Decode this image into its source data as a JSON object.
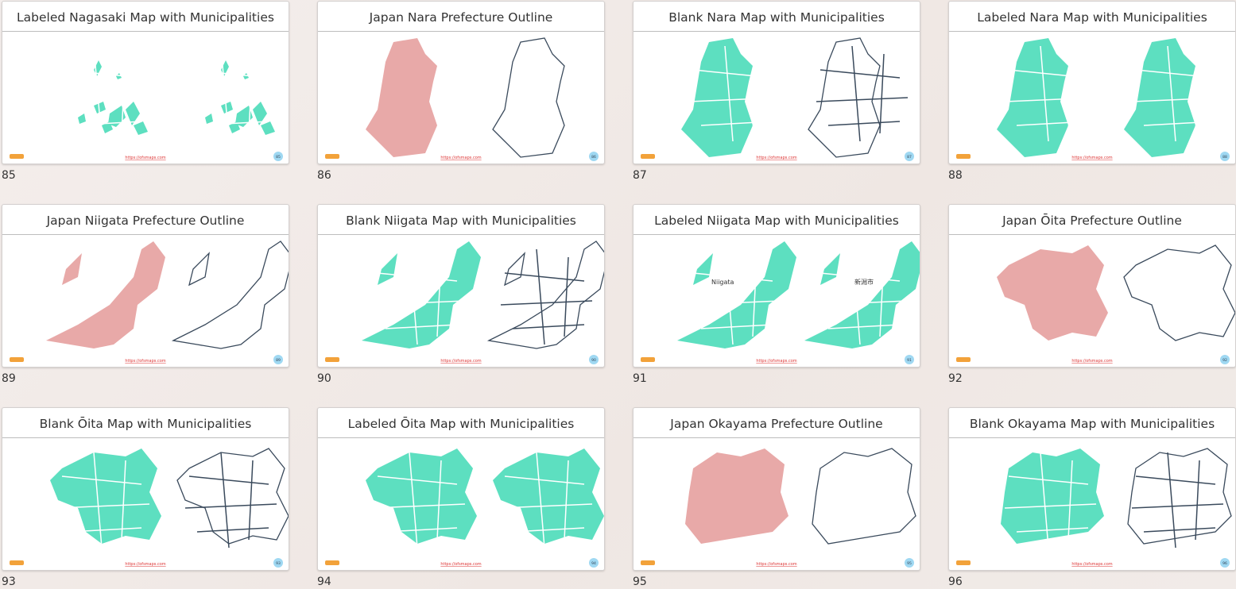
{
  "footer_url": "https://ofsmaps.com",
  "cards": [
    {
      "title": "Labeled Nagasaki Map with Municipalities",
      "number": "85"
    },
    {
      "title": "Japan Nara Prefecture Outline",
      "number": "86"
    },
    {
      "title": "Blank Nara Map with Municipalities",
      "number": "87"
    },
    {
      "title": "Labeled Nara Map with Municipalities",
      "number": "88"
    },
    {
      "title": "Japan Niigata Prefecture Outline",
      "number": "89"
    },
    {
      "title": "Blank Niigata Map with Municipalities",
      "number": "90"
    },
    {
      "title": "Labeled Niigata Map with Municipalities",
      "number": "91",
      "map_labels": [
        "Niigata",
        "新潟市"
      ]
    },
    {
      "title": "Japan Ōita Prefecture Outline",
      "number": "92"
    },
    {
      "title": "Blank Ōita Map with Municipalities",
      "number": "93"
    },
    {
      "title": "Labeled Ōita Map with Municipalities",
      "number": "94"
    },
    {
      "title": "Japan Okayama Prefecture Outline",
      "number": "95"
    },
    {
      "title": "Blank Okayama Map with Municipalities",
      "number": "96"
    }
  ]
}
